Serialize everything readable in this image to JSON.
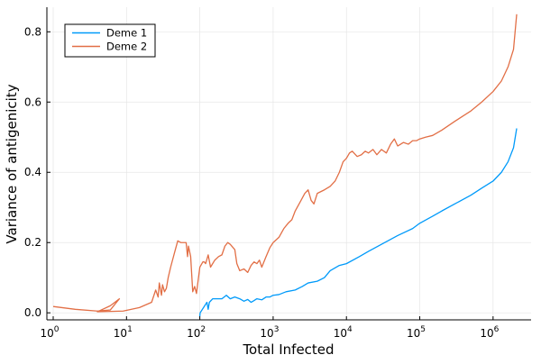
{
  "chart_data": {
    "type": "line",
    "title": "",
    "xlabel": "Total Infected",
    "ylabel": "Variance of antigenicity",
    "xscale": "log10",
    "xlim": [
      0.82,
      3300000
    ],
    "ylim": [
      -0.02,
      0.87
    ],
    "grid": true,
    "legend": {
      "position": "top-left",
      "framed": true
    },
    "x_ticks": [
      {
        "value": 1,
        "base": "10",
        "exp": "0"
      },
      {
        "value": 10,
        "base": "10",
        "exp": "1"
      },
      {
        "value": 100,
        "base": "10",
        "exp": "2"
      },
      {
        "value": 1000,
        "base": "10",
        "exp": "3"
      },
      {
        "value": 10000,
        "base": "10",
        "exp": "4"
      },
      {
        "value": 100000,
        "base": "10",
        "exp": "5"
      },
      {
        "value": 1000000,
        "base": "10",
        "exp": "6"
      }
    ],
    "y_ticks": [
      {
        "value": 0.0,
        "label": "0.0"
      },
      {
        "value": 0.2,
        "label": "0.2"
      },
      {
        "value": 0.4,
        "label": "0.4"
      },
      {
        "value": 0.6,
        "label": "0.6"
      },
      {
        "value": 0.8,
        "label": "0.8"
      }
    ],
    "series": [
      {
        "name": "Deme 1",
        "color": "#009AFA",
        "points": [
          [
            100,
            -0.01
          ],
          [
            101,
            0.0
          ],
          [
            125,
            0.03
          ],
          [
            130,
            0.01
          ],
          [
            135,
            0.03
          ],
          [
            150,
            0.04
          ],
          [
            175,
            0.04
          ],
          [
            200,
            0.04
          ],
          [
            230,
            0.05
          ],
          [
            260,
            0.04
          ],
          [
            300,
            0.045
          ],
          [
            350,
            0.04
          ],
          [
            400,
            0.033
          ],
          [
            450,
            0.038
          ],
          [
            500,
            0.03
          ],
          [
            550,
            0.035
          ],
          [
            600,
            0.04
          ],
          [
            700,
            0.037
          ],
          [
            800,
            0.045
          ],
          [
            900,
            0.045
          ],
          [
            1000,
            0.05
          ],
          [
            1200,
            0.052
          ],
          [
            1500,
            0.06
          ],
          [
            2000,
            0.065
          ],
          [
            2500,
            0.075
          ],
          [
            3000,
            0.085
          ],
          [
            4000,
            0.09
          ],
          [
            5000,
            0.1
          ],
          [
            6000,
            0.12
          ],
          [
            8000,
            0.135
          ],
          [
            10000,
            0.14
          ],
          [
            15000,
            0.16
          ],
          [
            20000,
            0.175
          ],
          [
            30000,
            0.195
          ],
          [
            50000,
            0.22
          ],
          [
            80000,
            0.24
          ],
          [
            100000,
            0.255
          ],
          [
            150000,
            0.275
          ],
          [
            200000,
            0.29
          ],
          [
            300000,
            0.31
          ],
          [
            500000,
            0.335
          ],
          [
            700000,
            0.355
          ],
          [
            1000000,
            0.375
          ],
          [
            1300000,
            0.4
          ],
          [
            1600000,
            0.43
          ],
          [
            1900000,
            0.47
          ],
          [
            2100000,
            0.525
          ]
        ]
      },
      {
        "name": "Deme 2",
        "color": "#E26F46",
        "points": [
          [
            1,
            0.018
          ],
          [
            2,
            0.01
          ],
          [
            4,
            0.005
          ],
          [
            6,
            0.008
          ],
          [
            8,
            0.04
          ],
          [
            6,
            0.02
          ],
          [
            4,
            0.003
          ],
          [
            6,
            0.004
          ],
          [
            9,
            0.005
          ],
          [
            15,
            0.015
          ],
          [
            22,
            0.03
          ],
          [
            25,
            0.065
          ],
          [
            27,
            0.045
          ],
          [
            28,
            0.085
          ],
          [
            30,
            0.05
          ],
          [
            31,
            0.08
          ],
          [
            33,
            0.06
          ],
          [
            35,
            0.07
          ],
          [
            37,
            0.1
          ],
          [
            40,
            0.13
          ],
          [
            45,
            0.17
          ],
          [
            50,
            0.205
          ],
          [
            55,
            0.2
          ],
          [
            60,
            0.2
          ],
          [
            65,
            0.2
          ],
          [
            68,
            0.16
          ],
          [
            70,
            0.19
          ],
          [
            75,
            0.16
          ],
          [
            80,
            0.06
          ],
          [
            85,
            0.075
          ],
          [
            90,
            0.055
          ],
          [
            100,
            0.13
          ],
          [
            110,
            0.145
          ],
          [
            115,
            0.145
          ],
          [
            120,
            0.14
          ],
          [
            130,
            0.165
          ],
          [
            140,
            0.13
          ],
          [
            160,
            0.15
          ],
          [
            180,
            0.16
          ],
          [
            200,
            0.165
          ],
          [
            220,
            0.19
          ],
          [
            240,
            0.2
          ],
          [
            260,
            0.195
          ],
          [
            300,
            0.18
          ],
          [
            320,
            0.14
          ],
          [
            350,
            0.12
          ],
          [
            400,
            0.125
          ],
          [
            450,
            0.115
          ],
          [
            500,
            0.135
          ],
          [
            550,
            0.145
          ],
          [
            600,
            0.14
          ],
          [
            650,
            0.15
          ],
          [
            700,
            0.13
          ],
          [
            800,
            0.16
          ],
          [
            900,
            0.185
          ],
          [
            1000,
            0.2
          ],
          [
            1200,
            0.215
          ],
          [
            1400,
            0.24
          ],
          [
            1600,
            0.255
          ],
          [
            1800,
            0.265
          ],
          [
            2000,
            0.29
          ],
          [
            2400,
            0.32
          ],
          [
            2700,
            0.34
          ],
          [
            3000,
            0.35
          ],
          [
            3300,
            0.32
          ],
          [
            3600,
            0.31
          ],
          [
            4000,
            0.34
          ],
          [
            5000,
            0.35
          ],
          [
            6000,
            0.36
          ],
          [
            7000,
            0.375
          ],
          [
            8000,
            0.4
          ],
          [
            9000,
            0.43
          ],
          [
            10000,
            0.44
          ],
          [
            11000,
            0.455
          ],
          [
            12000,
            0.46
          ],
          [
            14000,
            0.445
          ],
          [
            16000,
            0.45
          ],
          [
            18000,
            0.46
          ],
          [
            20000,
            0.455
          ],
          [
            23000,
            0.465
          ],
          [
            26000,
            0.45
          ],
          [
            30000,
            0.465
          ],
          [
            35000,
            0.455
          ],
          [
            40000,
            0.48
          ],
          [
            45000,
            0.495
          ],
          [
            50000,
            0.475
          ],
          [
            60000,
            0.485
          ],
          [
            70000,
            0.48
          ],
          [
            80000,
            0.49
          ],
          [
            90000,
            0.49
          ],
          [
            100000,
            0.495
          ],
          [
            120000,
            0.5
          ],
          [
            150000,
            0.505
          ],
          [
            200000,
            0.52
          ],
          [
            300000,
            0.545
          ],
          [
            500000,
            0.575
          ],
          [
            700000,
            0.6
          ],
          [
            1000000,
            0.63
          ],
          [
            1300000,
            0.66
          ],
          [
            1600000,
            0.7
          ],
          [
            1900000,
            0.75
          ],
          [
            2100000,
            0.85
          ]
        ]
      }
    ]
  }
}
